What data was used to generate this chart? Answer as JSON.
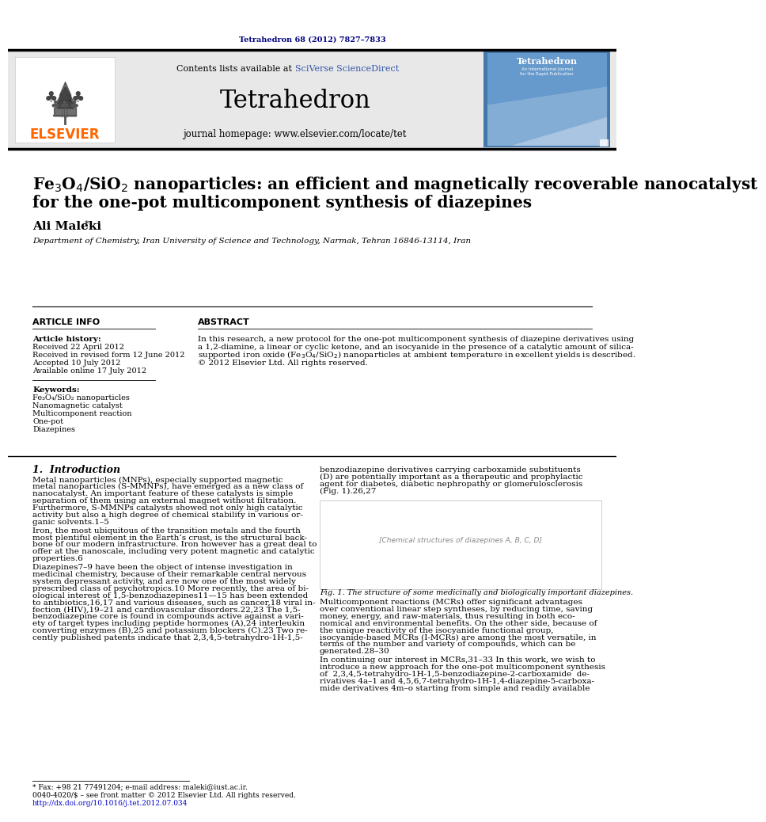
{
  "journal_ref": "Tetrahedron 68 (2012) 7827–7833",
  "journal_name": "Tetrahedron",
  "contents_text": "Contents lists available at ",
  "sciverse_text": "SciVerse ScienceDirect",
  "homepage_text": "journal homepage: www.elsevier.com/locate/tet",
  "elsevier_text": "ELSEVIER",
  "title_line1": "Fe₃O₄/SiO₂ nanoparticles: an efficient and magnetically recoverable nanocatalyst",
  "title_line2": "for the one-pot multicomponent synthesis of diazepines",
  "author": "Ali Maleki",
  "affiliation": "Department of Chemistry, Iran University of Science and Technology, Narmak, Tehran 16846-13114, Iran",
  "article_info_label": "ARTICLE INFO",
  "abstract_label": "ABSTRACT",
  "article_history_label": "Article history:",
  "received1": "Received 22 April 2012",
  "received2": "Received in revised form 12 June 2012",
  "accepted": "Accepted 10 July 2012",
  "available": "Available online 17 July 2012",
  "keywords_label": "Keywords:",
  "keywords": [
    "Fe₃O₄/SiO₂ nanoparticles",
    "Nanomagnetic catalyst",
    "Multicomponent reaction",
    "One-pot",
    "Diazepines"
  ],
  "intro_heading": "1.  Introduction",
  "fig1_caption": "Fig. 1. The structure of some medicinally and biologically important diazepines.",
  "footer_star": "* Fax: +98 21 77491204; e-mail address: maleki@iust.ac.ir.",
  "footer_line1": "0040-4020/$ – see front matter © 2012 Elsevier Ltd. All rights reserved.",
  "footer_line2": "http://dx.doi.org/10.1016/j.tet.2012.07.034",
  "dark_navy": "#000080",
  "orange_elsevier": "#FF6600",
  "blue_sciverse": "#3355AA",
  "blue_link": "#0000CC",
  "light_gray": "#e8e8e8",
  "cover_blue_dark": "#4477AA",
  "cover_blue_mid": "#6699CC",
  "cover_blue_light": "#99BBDD"
}
